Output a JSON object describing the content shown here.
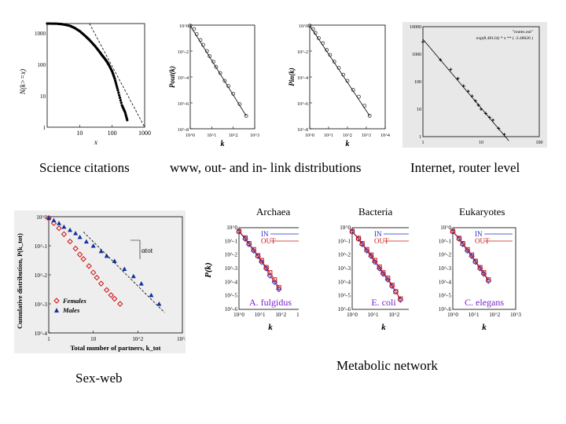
{
  "captions": {
    "science": "Science citations",
    "www": "www, out- and in- link distributions",
    "internet": "Internet, router level",
    "sexweb": "Sex-web",
    "metabolic": "Metabolic network"
  },
  "chart_data": [
    {
      "id": "science",
      "type": "scatter",
      "ylabel": "N(k>=x)",
      "xlabel": "x",
      "xticks": [
        "10",
        "100",
        "1000"
      ],
      "yticks": [
        "1000",
        "100",
        "10",
        "1"
      ],
      "series": [
        {
          "x": [
            1,
            2,
            3,
            5,
            7,
            10,
            15,
            20,
            30,
            40,
            50,
            60,
            70,
            80,
            100,
            120,
            150,
            200,
            250,
            300
          ],
          "y": [
            2000,
            1980,
            1900,
            1700,
            1450,
            1150,
            800,
            600,
            380,
            260,
            190,
            150,
            120,
            95,
            60,
            35,
            15,
            5,
            3,
            1.5
          ]
        }
      ],
      "fit": {
        "x": [
          20,
          1000
        ],
        "y": [
          2000,
          1
        ]
      }
    },
    {
      "id": "www-out",
      "type": "scatter",
      "ylabel": "Pout(k)",
      "xlabel": "k",
      "xticks": [
        "10^0",
        "10^1",
        "10^2",
        "10^3"
      ],
      "yticks": [
        "10^0",
        "10^-2",
        "10^-4",
        "10^-6",
        "10^-8"
      ],
      "series": [
        {
          "x": [
            1,
            1.5,
            2,
            3,
            4,
            6,
            8,
            12,
            16,
            25,
            40,
            60,
            100,
            200,
            400
          ],
          "y": [
            0.9,
            0.5,
            0.2,
            0.07,
            0.03,
            0.01,
            0.004,
            0.0015,
            0.0006,
            0.0002,
            5e-05,
            2e-05,
            5e-06,
            8e-07,
            1e-07
          ]
        }
      ]
    },
    {
      "id": "www-in",
      "type": "scatter",
      "ylabel": "Pin(k)",
      "xlabel": "k",
      "xticks": [
        "10^0",
        "10^1",
        "10^2",
        "10^3",
        "10^4"
      ],
      "yticks": [
        "10^0",
        "10^-2",
        "10^-4",
        "10^-6",
        "10^-8"
      ],
      "series": [
        {
          "x": [
            1,
            1.5,
            2,
            3,
            5,
            8,
            12,
            20,
            35,
            60,
            100,
            200,
            400,
            800,
            1500
          ],
          "y": [
            0.9,
            0.5,
            0.25,
            0.1,
            0.04,
            0.012,
            0.005,
            0.0015,
            0.0005,
            0.00015,
            5e-05,
            1e-05,
            3e-06,
            6e-07,
            1e-07
          ]
        }
      ]
    },
    {
      "id": "internet",
      "type": "scatter",
      "legend": [
        "\"routes.out\"",
        "exp(8.48124) * x ** ( -2.48626 )"
      ],
      "xticks": [
        "1",
        "10",
        "100"
      ],
      "yticks": [
        "10000",
        "1000",
        "100",
        "10",
        "1"
      ],
      "series": [
        {
          "x": [
            1,
            2,
            3,
            4,
            5,
            6,
            7,
            8,
            9,
            10,
            12,
            14,
            16,
            20,
            25
          ],
          "y": [
            2800,
            620,
            280,
            130,
            70,
            45,
            30,
            20,
            14,
            10,
            7,
            5,
            4,
            2,
            1.2
          ]
        }
      ]
    },
    {
      "id": "sexweb",
      "type": "scatter",
      "ylabel": "Cumulative distribution, P(k_tot)",
      "xlabel": "Total number of partners, k_tot",
      "xticks": [
        "1",
        "10",
        "10^2",
        "10^3"
      ],
      "yticks": [
        "10^0",
        "10^-1",
        "10^-2",
        "10^-3",
        "10^-4"
      ],
      "annotation": "αtot",
      "legend": [
        "Females",
        "Males"
      ],
      "series": [
        {
          "name": "Females",
          "x": [
            1,
            1.3,
            1.7,
            2.2,
            3,
            4,
            5,
            6,
            8,
            10,
            12,
            15,
            20,
            25,
            30,
            40
          ],
          "y": [
            0.9,
            0.6,
            0.4,
            0.25,
            0.14,
            0.08,
            0.05,
            0.035,
            0.02,
            0.012,
            0.008,
            0.005,
            0.003,
            0.002,
            0.0015,
            0.001
          ]
        },
        {
          "name": "Males",
          "x": [
            1,
            1.3,
            1.7,
            2.2,
            3,
            4,
            5,
            7,
            10,
            15,
            20,
            30,
            50,
            80,
            120,
            200,
            300
          ],
          "y": [
            0.9,
            0.75,
            0.6,
            0.45,
            0.35,
            0.27,
            0.2,
            0.14,
            0.1,
            0.065,
            0.045,
            0.03,
            0.016,
            0.009,
            0.005,
            0.002,
            0.001
          ]
        }
      ]
    },
    {
      "id": "archaea",
      "type": "scatter",
      "title": "Archaea",
      "organism": "A. fulgidus",
      "ylabel": "P(k)",
      "xlabel": "k",
      "xticks": [
        "10^0",
        "10^1",
        "10^2",
        "10^3"
      ],
      "yticks": [
        "10^0",
        "10^-1",
        "10^-2",
        "10^-3",
        "10^-4",
        "10^-5",
        "10^-6"
      ],
      "legend": [
        "IN",
        "OUT"
      ],
      "series": [
        {
          "name": "IN",
          "x": [
            1,
            2,
            3,
            5,
            8,
            12,
            20,
            30,
            50,
            80
          ],
          "y": [
            0.5,
            0.15,
            0.06,
            0.02,
            0.008,
            0.003,
            0.001,
            0.0003,
            0.0001,
            3e-05
          ]
        },
        {
          "name": "OUT",
          "x": [
            1,
            2,
            3,
            5,
            8,
            12,
            20,
            30,
            50,
            80
          ],
          "y": [
            0.55,
            0.18,
            0.07,
            0.025,
            0.009,
            0.004,
            0.0012,
            0.0005,
            0.00015,
            4e-05
          ]
        }
      ]
    },
    {
      "id": "bacteria",
      "type": "scatter",
      "title": "Bacteria",
      "organism": "E. coli",
      "xlabel": "k",
      "xticks": [
        "10^0",
        "10^1",
        "10^2",
        "10^3"
      ],
      "yticks": [
        "10^0",
        "10^-1",
        "10^-2",
        "10^-3",
        "10^-4",
        "10^-5",
        "10^-6"
      ],
      "legend": [
        "IN",
        "OUT"
      ],
      "series": [
        {
          "name": "IN",
          "x": [
            1,
            2,
            3,
            5,
            8,
            12,
            20,
            30,
            50,
            80,
            120,
            200
          ],
          "y": [
            0.5,
            0.15,
            0.06,
            0.02,
            0.008,
            0.003,
            0.001,
            0.0004,
            0.00015,
            5e-05,
            2e-05,
            5e-06
          ]
        },
        {
          "name": "OUT",
          "x": [
            1,
            2,
            3,
            5,
            8,
            12,
            20,
            30,
            50,
            80,
            120,
            200
          ],
          "y": [
            0.55,
            0.17,
            0.07,
            0.025,
            0.01,
            0.004,
            0.0013,
            0.0005,
            0.0002,
            6e-05,
            2e-05,
            6e-06
          ]
        }
      ]
    },
    {
      "id": "eukaryotes",
      "type": "scatter",
      "title": "Eukaryotes",
      "organism": "C. elegans",
      "xlabel": "k",
      "xticks": [
        "10^0",
        "10^1",
        "10^2",
        "10^3"
      ],
      "yticks": [
        "10^0",
        "10^-1",
        "10^-2",
        "10^-3",
        "10^-4",
        "10^-5",
        "10^-6"
      ],
      "legend": [
        "IN",
        "OUT"
      ],
      "series": [
        {
          "name": "IN",
          "x": [
            1,
            2,
            3,
            5,
            8,
            12,
            20,
            30,
            50
          ],
          "y": [
            0.5,
            0.15,
            0.06,
            0.02,
            0.008,
            0.003,
            0.001,
            0.0004,
            0.00012
          ]
        },
        {
          "name": "OUT",
          "x": [
            1,
            2,
            3,
            5,
            8,
            12,
            20,
            30,
            50
          ],
          "y": [
            0.55,
            0.17,
            0.07,
            0.025,
            0.01,
            0.0035,
            0.0012,
            0.0005,
            0.00015
          ]
        }
      ]
    }
  ]
}
